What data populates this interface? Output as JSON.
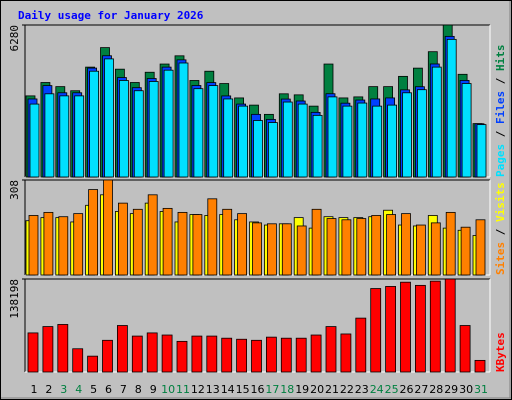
{
  "chart_data": [
    {
      "type": "bar",
      "title": "Daily usage for January 2026",
      "ylim": [
        0,
        6280
      ],
      "yticks": [
        6280
      ],
      "legend_separator": " / ",
      "series": [
        {
          "name": "Pages",
          "color": "#00e0ff",
          "values": [
            3013,
            3437,
            3352,
            3352,
            4370,
            4880,
            3988,
            3564,
            3946,
            4413,
            4710,
            3649,
            3776,
            3225,
            2928,
            2334,
            2249,
            3097,
            3013,
            2546,
            3310,
            2928,
            3055,
            2928,
            2970,
            3479,
            3607,
            4540,
            5686,
            3861,
            2164
          ]
        },
        {
          "name": "Files",
          "color": "#0040ff",
          "values": [
            3225,
            3776,
            3480,
            3480,
            4500,
            5010,
            4110,
            3690,
            4070,
            4540,
            4840,
            3780,
            3900,
            3350,
            3013,
            2588,
            2380,
            3220,
            3140,
            2670,
            3440,
            3050,
            3180,
            3225,
            3267,
            3600,
            3730,
            4670,
            5810,
            3990,
            2200
          ]
        },
        {
          "name": "Hits",
          "color": "#008040",
          "values": [
            3352,
            3904,
            3734,
            3564,
            4540,
            5346,
            4455,
            3904,
            4328,
            4667,
            5007,
            3988,
            4370,
            3861,
            3267,
            2970,
            2588,
            3437,
            3394,
            2928,
            4667,
            3267,
            3310,
            3734,
            3734,
            4158,
            4498,
            5177,
            6280,
            4243,
            2206
          ]
        }
      ]
    },
    {
      "type": "bar",
      "ylim": [
        0,
        308
      ],
      "yticks": [
        308
      ],
      "legend_separator": " / ",
      "series": [
        {
          "name": "Sites",
          "color": "#ff8000",
          "values": [
            193,
            203,
            189,
            199,
            277,
            308,
            233,
            213,
            260,
            216,
            203,
            196,
            247,
            213,
            199,
            169,
            166,
            166,
            159,
            213,
            183,
            179,
            183,
            193,
            196,
            199,
            162,
            169,
            203,
            155,
            179
          ]
        },
        {
          "name": "Visits",
          "color": "#ffff00",
          "values": [
            176,
            186,
            186,
            172,
            226,
            260,
            206,
            199,
            233,
            206,
            172,
            196,
            193,
            196,
            179,
            172,
            162,
            166,
            186,
            152,
            189,
            186,
            186,
            189,
            210,
            162,
            159,
            193,
            152,
            145,
            128
          ]
        }
      ]
    },
    {
      "type": "bar",
      "ylim": [
        0,
        138198
      ],
      "yticks": [
        138198
      ],
      "categories": [
        1,
        2,
        3,
        4,
        5,
        6,
        7,
        8,
        9,
        10,
        11,
        12,
        13,
        14,
        15,
        16,
        17,
        18,
        19,
        20,
        21,
        22,
        23,
        24,
        25,
        26,
        27,
        28,
        29,
        30,
        31
      ],
      "category_colors": [
        "#000000",
        "#000000",
        "#008040",
        "#008040",
        "#000000",
        "#000000",
        "#000000",
        "#000000",
        "#000000",
        "#008040",
        "#008040",
        "#000000",
        "#000000",
        "#000000",
        "#000000",
        "#000000",
        "#008040",
        "#008040",
        "#000000",
        "#000000",
        "#000000",
        "#000000",
        "#000000",
        "#008040",
        "#008040",
        "#000000",
        "#000000",
        "#000000",
        "#000000",
        "#000000",
        "#008040"
      ],
      "series": [
        {
          "name": "KBytes",
          "color": "#ff0000",
          "values": [
            58090,
            67510,
            70650,
            34540,
            23550,
            47100,
            69080,
            53380,
            58090,
            54950,
            45530,
            53380,
            53380,
            50240,
            48670,
            47100,
            51810,
            50240,
            50240,
            54950,
            67510,
            56520,
            80070,
            124030,
            127170,
            133450,
            128740,
            135020,
            138198,
            69080,
            17270
          ]
        }
      ]
    }
  ]
}
